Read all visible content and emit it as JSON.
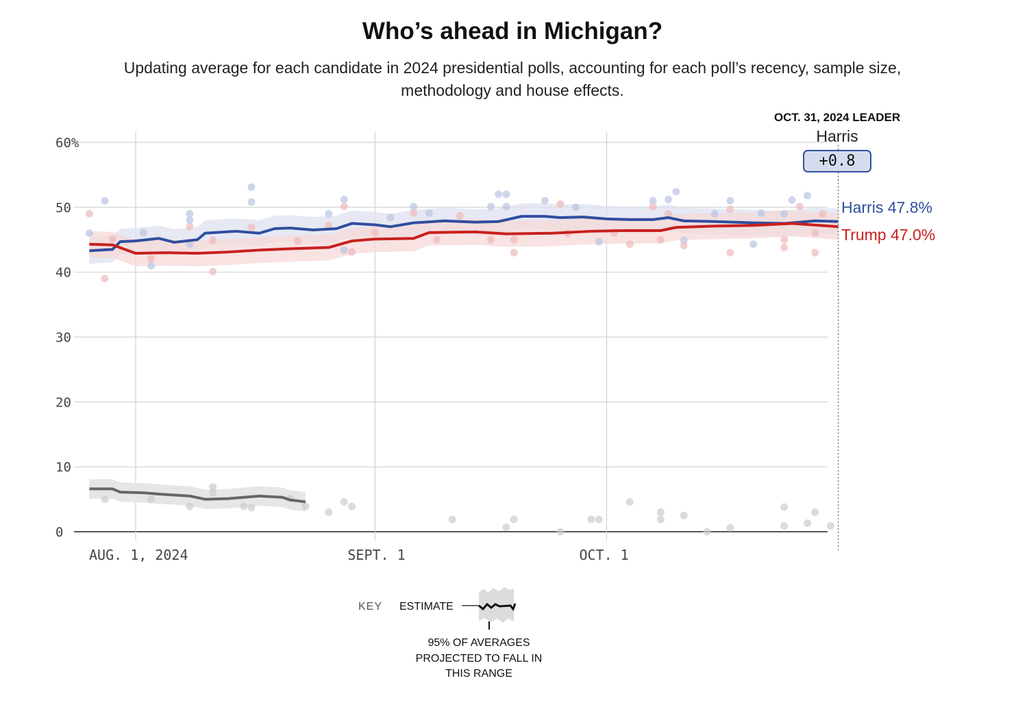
{
  "chart_data": {
    "type": "line",
    "title": "Who’s ahead in Michigan?",
    "subtitle": "Updating average for each candidate in 2024 presidential polls, accounting for each poll’s recency, sample size, methodology and house effects.",
    "ylim": [
      0,
      60
    ],
    "y_ticks": [
      "60%",
      "50",
      "40",
      "30",
      "20",
      "10",
      "0"
    ],
    "x_ticks": [
      {
        "date": "2024-08-01",
        "label": "AUG. 1, 2024"
      },
      {
        "date": "2024-09-01",
        "label": "SEPT. 1"
      },
      {
        "date": "2024-10-01",
        "label": "OCT. 1"
      }
    ],
    "xlim": [
      "2024-07-26",
      "2024-10-31"
    ],
    "grid": true,
    "band_halfwidth": 2,
    "series": [
      {
        "name": "Harris",
        "color": "#2f4e9e",
        "band_color": "#dde2f0",
        "dot_color": "#b9c5e3",
        "points": [
          [
            "2024-07-26",
            43.3
          ],
          [
            "2024-07-29",
            43.5
          ],
          [
            "2024-07-30",
            44.7
          ],
          [
            "2024-08-01",
            44.8
          ],
          [
            "2024-08-04",
            45.2
          ],
          [
            "2024-08-06",
            44.6
          ],
          [
            "2024-08-09",
            45.0
          ],
          [
            "2024-08-10",
            46.0
          ],
          [
            "2024-08-14",
            46.3
          ],
          [
            "2024-08-17",
            46.0
          ],
          [
            "2024-08-19",
            46.7
          ],
          [
            "2024-08-21",
            46.8
          ],
          [
            "2024-08-24",
            46.5
          ],
          [
            "2024-08-27",
            46.7
          ],
          [
            "2024-08-29",
            47.5
          ],
          [
            "2024-09-01",
            47.3
          ],
          [
            "2024-09-03",
            47.0
          ],
          [
            "2024-09-06",
            47.6
          ],
          [
            "2024-09-10",
            47.9
          ],
          [
            "2024-09-14",
            47.7
          ],
          [
            "2024-09-17",
            47.8
          ],
          [
            "2024-09-20",
            48.6
          ],
          [
            "2024-09-23",
            48.6
          ],
          [
            "2024-09-25",
            48.4
          ],
          [
            "2024-09-28",
            48.5
          ],
          [
            "2024-10-01",
            48.2
          ],
          [
            "2024-10-04",
            48.1
          ],
          [
            "2024-10-07",
            48.1
          ],
          [
            "2024-10-09",
            48.4
          ],
          [
            "2024-10-11",
            47.9
          ],
          [
            "2024-10-15",
            47.8
          ],
          [
            "2024-10-20",
            47.6
          ],
          [
            "2024-10-24",
            47.5
          ],
          [
            "2024-10-28",
            47.9
          ],
          [
            "2024-10-31",
            47.8
          ]
        ],
        "polls": [
          [
            "2024-07-26",
            46.0
          ],
          [
            "2024-07-28",
            51.0
          ],
          [
            "2024-08-02",
            46.1
          ],
          [
            "2024-08-03",
            41.0
          ],
          [
            "2024-08-08",
            49.0
          ],
          [
            "2024-08-08",
            48.0
          ],
          [
            "2024-08-08",
            44.3
          ],
          [
            "2024-08-16",
            53.1
          ],
          [
            "2024-08-16",
            50.8
          ],
          [
            "2024-08-26",
            49.0
          ],
          [
            "2024-08-28",
            51.2
          ],
          [
            "2024-08-28",
            43.4
          ],
          [
            "2024-09-03",
            48.4
          ],
          [
            "2024-09-06",
            50.1
          ],
          [
            "2024-09-08",
            49.1
          ],
          [
            "2024-09-16",
            50.1
          ],
          [
            "2024-09-17",
            52.0
          ],
          [
            "2024-09-18",
            52.0
          ],
          [
            "2024-09-18",
            50.1
          ],
          [
            "2024-09-23",
            51.0
          ],
          [
            "2024-09-27",
            50.0
          ],
          [
            "2024-09-30",
            44.7
          ],
          [
            "2024-10-07",
            51.0
          ],
          [
            "2024-10-09",
            51.2
          ],
          [
            "2024-10-10",
            52.4
          ],
          [
            "2024-10-11",
            44.9
          ],
          [
            "2024-10-15",
            49.0
          ],
          [
            "2024-10-17",
            51.0
          ],
          [
            "2024-10-20",
            44.3
          ],
          [
            "2024-10-21",
            49.1
          ],
          [
            "2024-10-24",
            49.0
          ],
          [
            "2024-10-25",
            51.1
          ],
          [
            "2024-10-27",
            51.8
          ]
        ]
      },
      {
        "name": "Trump",
        "color": "#c8201e",
        "band_color": "#f6d8d8",
        "dot_color": "#f0b9b9",
        "points": [
          [
            "2024-07-26",
            44.3
          ],
          [
            "2024-07-29",
            44.2
          ],
          [
            "2024-08-01",
            42.9
          ],
          [
            "2024-08-05",
            43.0
          ],
          [
            "2024-08-09",
            42.9
          ],
          [
            "2024-08-13",
            43.1
          ],
          [
            "2024-08-17",
            43.4
          ],
          [
            "2024-08-21",
            43.6
          ],
          [
            "2024-08-26",
            43.8
          ],
          [
            "2024-08-29",
            44.8
          ],
          [
            "2024-09-01",
            45.1
          ],
          [
            "2024-09-06",
            45.2
          ],
          [
            "2024-09-08",
            46.1
          ],
          [
            "2024-09-14",
            46.2
          ],
          [
            "2024-09-18",
            45.9
          ],
          [
            "2024-09-24",
            46.0
          ],
          [
            "2024-09-29",
            46.3
          ],
          [
            "2024-10-03",
            46.4
          ],
          [
            "2024-10-08",
            46.4
          ],
          [
            "2024-10-10",
            46.9
          ],
          [
            "2024-10-15",
            47.1
          ],
          [
            "2024-10-20",
            47.2
          ],
          [
            "2024-10-25",
            47.5
          ],
          [
            "2024-10-31",
            47.0
          ]
        ],
        "polls": [
          [
            "2024-07-26",
            49.0
          ],
          [
            "2024-07-28",
            39.0
          ],
          [
            "2024-07-29",
            45.1
          ],
          [
            "2024-08-03",
            42.1
          ],
          [
            "2024-08-08",
            47.0
          ],
          [
            "2024-08-11",
            40.1
          ],
          [
            "2024-08-11",
            44.9
          ],
          [
            "2024-08-16",
            46.9
          ],
          [
            "2024-08-22",
            44.8
          ],
          [
            "2024-08-26",
            47.2
          ],
          [
            "2024-08-28",
            50.1
          ],
          [
            "2024-08-29",
            43.1
          ],
          [
            "2024-09-01",
            46.1
          ],
          [
            "2024-09-06",
            49.1
          ],
          [
            "2024-09-09",
            45.0
          ],
          [
            "2024-09-12",
            48.7
          ],
          [
            "2024-09-16",
            45.0
          ],
          [
            "2024-09-19",
            43.0
          ],
          [
            "2024-09-19",
            45.0
          ],
          [
            "2024-09-25",
            50.5
          ],
          [
            "2024-09-26",
            46.0
          ],
          [
            "2024-10-02",
            46.1
          ],
          [
            "2024-10-04",
            44.3
          ],
          [
            "2024-10-07",
            50.1
          ],
          [
            "2024-10-08",
            45.0
          ],
          [
            "2024-10-09",
            49.0
          ],
          [
            "2024-10-11",
            44.1
          ],
          [
            "2024-10-17",
            43.0
          ],
          [
            "2024-10-17",
            49.7
          ],
          [
            "2024-10-24",
            45.0
          ],
          [
            "2024-10-24",
            43.8
          ],
          [
            "2024-10-26",
            50.1
          ],
          [
            "2024-10-28",
            43.0
          ],
          [
            "2024-10-28",
            46.0
          ],
          [
            "2024-10-29",
            49.0
          ]
        ]
      },
      {
        "color": "#666666",
        "band_color": "#e6e6e6",
        "dot_color": "#cccccc",
        "points": [
          [
            "2024-07-26",
            6.6
          ],
          [
            "2024-07-29",
            6.6
          ],
          [
            "2024-07-30",
            6.1
          ],
          [
            "2024-08-02",
            6.0
          ],
          [
            "2024-08-04",
            5.8
          ],
          [
            "2024-08-08",
            5.5
          ],
          [
            "2024-08-10",
            5.0
          ],
          [
            "2024-08-13",
            5.1
          ],
          [
            "2024-08-15",
            5.3
          ],
          [
            "2024-08-17",
            5.5
          ],
          [
            "2024-08-20",
            5.3
          ],
          [
            "2024-08-21",
            4.9
          ],
          [
            "2024-08-23",
            4.6
          ]
        ],
        "polls": [
          [
            "2024-07-28",
            5.0
          ],
          [
            "2024-08-03",
            5.0
          ],
          [
            "2024-08-08",
            3.9
          ],
          [
            "2024-08-11",
            6.9
          ],
          [
            "2024-08-11",
            6.0
          ],
          [
            "2024-08-15",
            3.9
          ],
          [
            "2024-08-16",
            3.7
          ],
          [
            "2024-08-21",
            5.1
          ],
          [
            "2024-08-23",
            3.9
          ],
          [
            "2024-08-26",
            3.0
          ],
          [
            "2024-08-28",
            4.6
          ],
          [
            "2024-08-29",
            3.9
          ],
          [
            "2024-09-11",
            1.9
          ],
          [
            "2024-09-18",
            0.7
          ],
          [
            "2024-09-19",
            1.9
          ],
          [
            "2024-09-25",
            0.0
          ],
          [
            "2024-09-29",
            1.9
          ],
          [
            "2024-09-30",
            1.9
          ],
          [
            "2024-10-04",
            4.6
          ],
          [
            "2024-10-08",
            3.0
          ],
          [
            "2024-10-08",
            1.9
          ],
          [
            "2024-10-11",
            2.5
          ],
          [
            "2024-10-14",
            0.0
          ],
          [
            "2024-10-17",
            0.6
          ],
          [
            "2024-10-24",
            3.8
          ],
          [
            "2024-10-24",
            0.9
          ],
          [
            "2024-10-27",
            1.3
          ],
          [
            "2024-10-28",
            3.0
          ],
          [
            "2024-10-30",
            0.9
          ]
        ]
      }
    ],
    "leader": {
      "heading": "OCT. 31, 2024 LEADER",
      "name": "Harris",
      "margin": "+0.8",
      "date": "2024-10-31"
    },
    "end_labels": {
      "harris": "Harris 47.8%",
      "trump": "Trump 47.0%"
    },
    "key": {
      "label": "KEY",
      "estimate": "ESTIMATE",
      "range": "95% OF AVERAGES PROJECTED TO FALL IN THIS RANGE"
    }
  }
}
